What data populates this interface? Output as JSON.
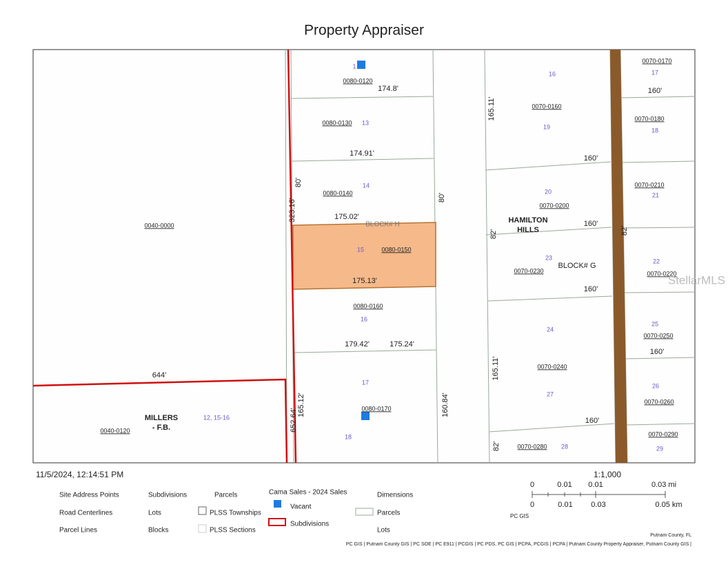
{
  "header": {
    "title": "Property Appraiser"
  },
  "map": {
    "labels": [
      "1",
      "0080-0120",
      "174.8'",
      "0080-0130",
      "13",
      "174.91'",
      "80'",
      "0080-0140",
      "14",
      "175.02'",
      "BLOCK# H",
      "323.16'",
      "80'",
      "15",
      "0080-0150",
      "175.13'",
      "0080-0160",
      "16",
      "179.42'",
      "175.24'",
      "17",
      "0080-0170",
      "18",
      "165.12'",
      "652.64'",
      "160.84'",
      "0040-0000",
      "644'",
      "MILLERS",
      "- F.B.",
      "12, 15-16",
      "0040-0120",
      "16",
      "165.11'",
      "0070-0160",
      "19",
      "160'",
      "20",
      "0070-0200",
      "HAMILTON",
      "HILLS",
      "160'",
      "82'",
      "23",
      "BLOCK# G",
      "0070-0230",
      "160'",
      "24",
      "165.11'",
      "0070-0240",
      "27",
      "160'",
      "82'",
      "0070-0280",
      "28",
      "0070-0170",
      "17",
      "160'",
      "0070-0180",
      "18",
      "0070-0210",
      "21",
      "82'",
      "22",
      "0070-0220",
      "25",
      "0070-0250",
      "160'",
      "26",
      "0070-0260",
      "0070-0290",
      "29",
      "StellarMLS"
    ]
  },
  "footer": {
    "timestamp": "11/5/2024, 12:14:51 PM",
    "scale": "1:1,000",
    "scale_mi": [
      "0",
      "0.01",
      "0.01",
      "0.03 mi"
    ],
    "scale_km": [
      "0",
      "0.01",
      "0.03",
      "0.05 km"
    ],
    "scale_source": "PC GIS",
    "legend": {
      "site_address_points": "Site Address Points",
      "road_centerlines": "Road Centerlines",
      "parcel_lines": "Parcel Lines",
      "subdivisions": "Subdivisions",
      "lots": "Lots",
      "blocks": "Blocks",
      "parcels": "Parcels",
      "plss_townships": "PLSS Townships",
      "plss_sections": "PLSS Sections",
      "cama_sales": "Cama Sales - 2024 Sales",
      "vacant": "Vacant",
      "subdivisions_2": "Subdivisions",
      "dimensions": "Dimensions",
      "dim_parcels": "Parcels",
      "dim_lots": "Lots"
    },
    "county": "Putnam County, FL",
    "credits": "PC GIS | Putnam County GIS | PC SOE | PC E911 | PCGIS | PC PDS, PC GIS | PCPA, PCGIS | PCPA | Putnam County Property Appraiser, Putnam County GIS |"
  }
}
